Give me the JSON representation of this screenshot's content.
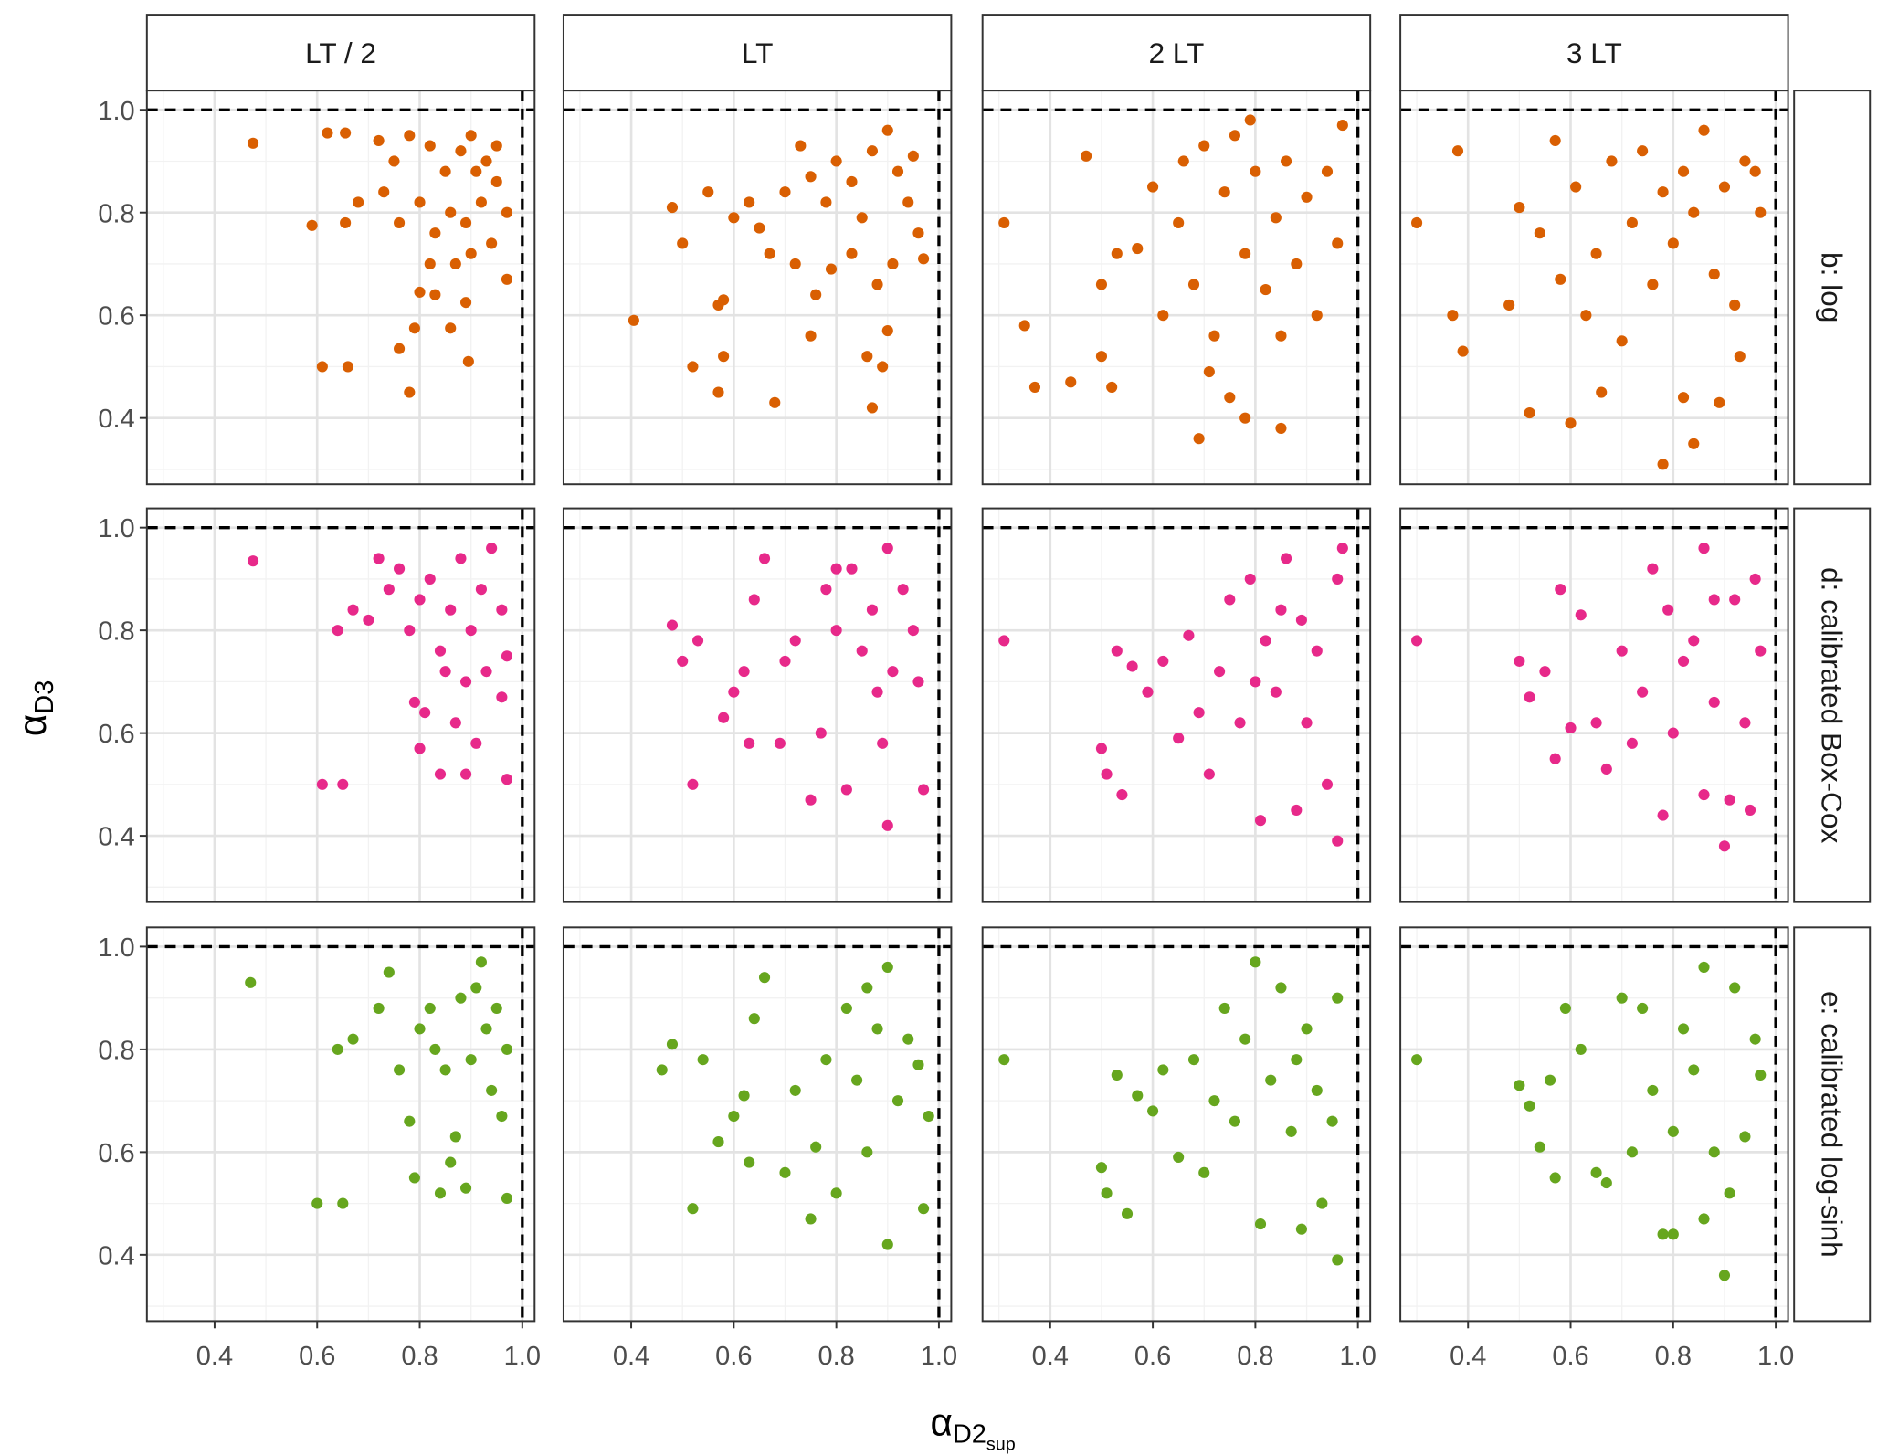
{
  "chart_data": {
    "type": "scatter",
    "columns": [
      "LT / 2",
      "LT",
      "2 LT",
      "3 LT"
    ],
    "x_label": "α",
    "x_label_sub": "D2",
    "x_label_subsub": "sup",
    "y_label": "α",
    "y_label_sub": "D3",
    "xlim": [
      0.268,
      1.024
    ],
    "ylim": [
      0.271,
      1.0375
    ],
    "xticks": [
      0.4,
      0.6,
      0.8,
      {
        "value": 1,
        "label": "1.0"
      }
    ],
    "yticks": [
      0.4,
      0.6,
      0.8,
      {
        "value": 1,
        "label": "1.0"
      }
    ],
    "grid": true,
    "reference_x": 1,
    "reference_y": 1,
    "rows": [
      {
        "name": "b: log",
        "color": "#d95f02",
        "panels": [
          {
            "x": [
              0.475,
              0.59,
              0.61,
              0.66,
              0.62,
              0.655,
              0.655,
              0.76,
              0.78,
              0.79,
              0.86,
              0.895,
              0.89,
              0.97,
              0.8,
              0.83,
              0.72,
              0.75,
              0.78,
              0.82,
              0.85,
              0.88,
              0.9,
              0.93,
              0.95,
              0.92,
              0.89,
              0.86,
              0.83,
              0.8,
              0.76,
              0.73,
              0.97,
              0.94,
              0.9,
              0.87,
              0.82,
              0.95,
              0.91,
              0.68
            ],
            "y": [
              0.935,
              0.775,
              0.5,
              0.5,
              0.955,
              0.955,
              0.78,
              0.535,
              0.45,
              0.575,
              0.575,
              0.51,
              0.625,
              0.67,
              0.645,
              0.64,
              0.94,
              0.9,
              0.95,
              0.93,
              0.88,
              0.92,
              0.95,
              0.9,
              0.86,
              0.82,
              0.78,
              0.8,
              0.76,
              0.82,
              0.78,
              0.84,
              0.8,
              0.74,
              0.72,
              0.7,
              0.7,
              0.93,
              0.88,
              0.82
            ]
          },
          {
            "x": [
              0.405,
              0.48,
              0.5,
              0.52,
              0.55,
              0.57,
              0.57,
              0.58,
              0.58,
              0.68,
              0.87,
              0.86,
              0.89,
              0.9,
              0.75,
              0.6,
              0.63,
              0.65,
              0.67,
              0.7,
              0.73,
              0.75,
              0.78,
              0.8,
              0.83,
              0.85,
              0.87,
              0.9,
              0.92,
              0.94,
              0.96,
              0.91,
              0.88,
              0.83,
              0.79,
              0.76,
              0.95,
              0.97,
              0.72
            ],
            "y": [
              0.59,
              0.81,
              0.74,
              0.5,
              0.84,
              0.45,
              0.62,
              0.63,
              0.52,
              0.43,
              0.42,
              0.52,
              0.5,
              0.57,
              0.56,
              0.79,
              0.82,
              0.77,
              0.72,
              0.84,
              0.93,
              0.87,
              0.82,
              0.9,
              0.86,
              0.79,
              0.92,
              0.96,
              0.88,
              0.82,
              0.76,
              0.7,
              0.66,
              0.72,
              0.69,
              0.64,
              0.91,
              0.71,
              0.7
            ]
          },
          {
            "x": [
              0.31,
              0.35,
              0.37,
              0.44,
              0.47,
              0.5,
              0.52,
              0.69,
              0.78,
              0.85,
              0.75,
              0.71,
              0.5,
              0.53,
              0.57,
              0.6,
              0.62,
              0.65,
              0.68,
              0.7,
              0.72,
              0.74,
              0.76,
              0.78,
              0.8,
              0.82,
              0.84,
              0.86,
              0.88,
              0.9,
              0.92,
              0.94,
              0.96,
              0.97,
              0.85,
              0.79,
              0.66
            ],
            "y": [
              0.78,
              0.58,
              0.46,
              0.47,
              0.91,
              0.52,
              0.46,
              0.36,
              0.4,
              0.38,
              0.44,
              0.49,
              0.66,
              0.72,
              0.73,
              0.85,
              0.6,
              0.78,
              0.66,
              0.93,
              0.56,
              0.84,
              0.95,
              0.72,
              0.88,
              0.65,
              0.79,
              0.9,
              0.7,
              0.83,
              0.6,
              0.88,
              0.74,
              0.97,
              0.56,
              0.98,
              0.9
            ]
          },
          {
            "x": [
              0.3,
              0.37,
              0.38,
              0.39,
              0.48,
              0.52,
              0.6,
              0.66,
              0.78,
              0.84,
              0.82,
              0.89,
              0.5,
              0.54,
              0.57,
              0.58,
              0.61,
              0.63,
              0.65,
              0.68,
              0.7,
              0.72,
              0.74,
              0.76,
              0.78,
              0.8,
              0.82,
              0.84,
              0.86,
              0.88,
              0.9,
              0.92,
              0.94,
              0.96,
              0.93,
              0.97
            ],
            "y": [
              0.78,
              0.6,
              0.92,
              0.53,
              0.62,
              0.41,
              0.39,
              0.45,
              0.31,
              0.35,
              0.44,
              0.43,
              0.81,
              0.76,
              0.94,
              0.67,
              0.85,
              0.6,
              0.72,
              0.9,
              0.55,
              0.78,
              0.92,
              0.66,
              0.84,
              0.74,
              0.88,
              0.8,
              0.96,
              0.68,
              0.85,
              0.62,
              0.9,
              0.88,
              0.52,
              0.8
            ]
          }
        ]
      },
      {
        "name": "d: calibrated Box-Cox",
        "color": "#e7298a",
        "panels": [
          {
            "x": [
              0.475,
              0.61,
              0.65,
              0.64,
              0.67,
              0.7,
              0.72,
              0.74,
              0.76,
              0.78,
              0.8,
              0.82,
              0.84,
              0.86,
              0.88,
              0.9,
              0.92,
              0.94,
              0.96,
              0.97,
              0.93,
              0.89,
              0.85,
              0.8,
              0.79,
              0.84,
              0.89,
              0.91,
              0.97,
              0.96,
              0.81,
              0.87
            ],
            "y": [
              0.935,
              0.5,
              0.5,
              0.8,
              0.84,
              0.82,
              0.94,
              0.88,
              0.92,
              0.8,
              0.86,
              0.9,
              0.76,
              0.84,
              0.94,
              0.8,
              0.88,
              0.96,
              0.84,
              0.75,
              0.72,
              0.7,
              0.72,
              0.57,
              0.66,
              0.52,
              0.52,
              0.58,
              0.51,
              0.67,
              0.64,
              0.62
            ]
          },
          {
            "x": [
              0.48,
              0.5,
              0.52,
              0.53,
              0.58,
              0.6,
              0.62,
              0.63,
              0.64,
              0.66,
              0.69,
              0.7,
              0.72,
              0.75,
              0.77,
              0.78,
              0.8,
              0.82,
              0.83,
              0.85,
              0.87,
              0.89,
              0.9,
              0.9,
              0.91,
              0.93,
              0.95,
              0.97,
              0.96,
              0.88,
              0.8
            ],
            "y": [
              0.81,
              0.74,
              0.5,
              0.78,
              0.63,
              0.68,
              0.72,
              0.58,
              0.86,
              0.94,
              0.58,
              0.74,
              0.78,
              0.47,
              0.6,
              0.88,
              0.8,
              0.49,
              0.92,
              0.76,
              0.84,
              0.58,
              0.96,
              0.42,
              0.72,
              0.88,
              0.8,
              0.49,
              0.7,
              0.68,
              0.92
            ]
          },
          {
            "x": [
              0.31,
              0.5,
              0.51,
              0.53,
              0.54,
              0.56,
              0.59,
              0.62,
              0.65,
              0.67,
              0.69,
              0.71,
              0.73,
              0.75,
              0.77,
              0.79,
              0.81,
              0.82,
              0.84,
              0.86,
              0.88,
              0.89,
              0.9,
              0.92,
              0.94,
              0.96,
              0.96,
              0.97,
              0.85,
              0.8
            ],
            "y": [
              0.78,
              0.57,
              0.52,
              0.76,
              0.48,
              0.73,
              0.68,
              0.74,
              0.59,
              0.79,
              0.64,
              0.52,
              0.72,
              0.86,
              0.62,
              0.9,
              0.43,
              0.78,
              0.68,
              0.94,
              0.45,
              0.82,
              0.62,
              0.76,
              0.5,
              0.39,
              0.9,
              0.96,
              0.84,
              0.7
            ]
          },
          {
            "x": [
              0.3,
              0.5,
              0.52,
              0.55,
              0.57,
              0.58,
              0.6,
              0.62,
              0.65,
              0.67,
              0.7,
              0.72,
              0.74,
              0.76,
              0.78,
              0.8,
              0.82,
              0.84,
              0.86,
              0.86,
              0.88,
              0.9,
              0.91,
              0.92,
              0.94,
              0.95,
              0.96,
              0.97,
              0.88,
              0.79
            ],
            "y": [
              0.78,
              0.74,
              0.67,
              0.72,
              0.55,
              0.88,
              0.61,
              0.83,
              0.62,
              0.53,
              0.76,
              0.58,
              0.68,
              0.92,
              0.44,
              0.6,
              0.74,
              0.78,
              0.96,
              0.48,
              0.66,
              0.38,
              0.47,
              0.86,
              0.62,
              0.45,
              0.9,
              0.76,
              0.86,
              0.84
            ]
          }
        ]
      },
      {
        "name": "e: calibrated log-sinh",
        "color": "#66a61e",
        "panels": [
          {
            "x": [
              0.47,
              0.6,
              0.65,
              0.64,
              0.67,
              0.72,
              0.74,
              0.76,
              0.78,
              0.79,
              0.8,
              0.82,
              0.84,
              0.86,
              0.87,
              0.88,
              0.89,
              0.9,
              0.92,
              0.93,
              0.94,
              0.95,
              0.96,
              0.97,
              0.97,
              0.85,
              0.83,
              0.91
            ],
            "y": [
              0.93,
              0.5,
              0.5,
              0.8,
              0.82,
              0.88,
              0.95,
              0.76,
              0.66,
              0.55,
              0.84,
              0.88,
              0.52,
              0.58,
              0.63,
              0.9,
              0.53,
              0.78,
              0.97,
              0.84,
              0.72,
              0.88,
              0.67,
              0.51,
              0.8,
              0.76,
              0.8,
              0.92
            ]
          },
          {
            "x": [
              0.46,
              0.48,
              0.52,
              0.54,
              0.57,
              0.6,
              0.62,
              0.63,
              0.64,
              0.66,
              0.7,
              0.72,
              0.75,
              0.76,
              0.78,
              0.8,
              0.82,
              0.84,
              0.86,
              0.88,
              0.9,
              0.9,
              0.92,
              0.94,
              0.96,
              0.97,
              0.98,
              0.86
            ],
            "y": [
              0.76,
              0.81,
              0.49,
              0.78,
              0.62,
              0.67,
              0.71,
              0.58,
              0.86,
              0.94,
              0.56,
              0.72,
              0.47,
              0.61,
              0.78,
              0.52,
              0.88,
              0.74,
              0.6,
              0.84,
              0.42,
              0.96,
              0.7,
              0.82,
              0.77,
              0.49,
              0.67,
              0.92
            ]
          },
          {
            "x": [
              0.31,
              0.5,
              0.51,
              0.53,
              0.55,
              0.57,
              0.6,
              0.62,
              0.65,
              0.68,
              0.7,
              0.72,
              0.74,
              0.76,
              0.78,
              0.8,
              0.81,
              0.83,
              0.85,
              0.87,
              0.89,
              0.9,
              0.92,
              0.93,
              0.95,
              0.96,
              0.96,
              0.88
            ],
            "y": [
              0.78,
              0.57,
              0.52,
              0.75,
              0.48,
              0.71,
              0.68,
              0.76,
              0.59,
              0.78,
              0.56,
              0.7,
              0.88,
              0.66,
              0.82,
              0.97,
              0.46,
              0.74,
              0.92,
              0.64,
              0.45,
              0.84,
              0.72,
              0.5,
              0.66,
              0.39,
              0.9,
              0.78
            ]
          },
          {
            "x": [
              0.3,
              0.5,
              0.52,
              0.54,
              0.56,
              0.57,
              0.59,
              0.62,
              0.65,
              0.67,
              0.7,
              0.72,
              0.74,
              0.76,
              0.78,
              0.8,
              0.82,
              0.84,
              0.86,
              0.86,
              0.88,
              0.9,
              0.91,
              0.92,
              0.94,
              0.96,
              0.97,
              0.8
            ],
            "y": [
              0.78,
              0.73,
              0.69,
              0.61,
              0.74,
              0.55,
              0.88,
              0.8,
              0.56,
              0.54,
              0.9,
              0.6,
              0.88,
              0.72,
              0.44,
              0.64,
              0.84,
              0.76,
              0.96,
              0.47,
              0.6,
              0.36,
              0.52,
              0.92,
              0.63,
              0.82,
              0.75,
              0.44
            ]
          }
        ]
      }
    ]
  }
}
